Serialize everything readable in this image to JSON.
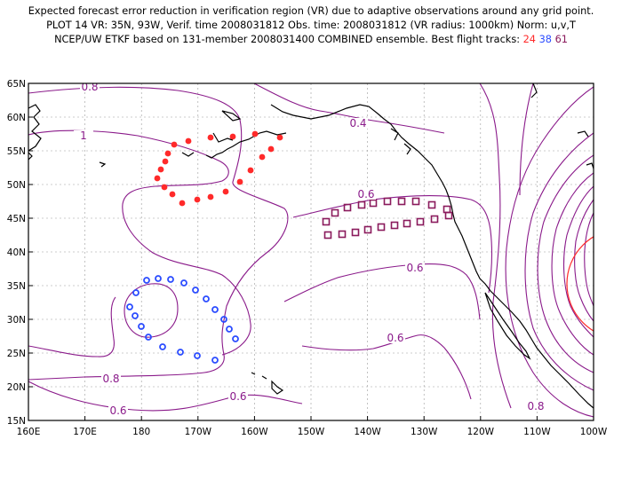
{
  "header": {
    "line1": "Expected forecast error reduction in verification region (VR) due to adaptive observations around any grid point.",
    "line2": "PLOT 14 VR: 35N, 93W, Verif. time 2008031812 Obs. time: 2008031812 (VR radius: 1000km) Norm: u,v,T",
    "line3_prefix": "NCEP/UW ETKF based on 131-member 2008031400 COMBINED ensemble.  Best flight tracks: ",
    "track_24": "24",
    "track_38": "38",
    "track_61": "61"
  },
  "map": {
    "lat_labels": [
      "65N",
      "60N",
      "55N",
      "50N",
      "45N",
      "40N",
      "35N",
      "30N",
      "25N",
      "20N",
      "15N"
    ],
    "lon_labels": [
      "160E",
      "170E",
      "180",
      "170W",
      "160W",
      "150W",
      "140W",
      "130W",
      "120W",
      "110W",
      "100W"
    ],
    "contour_labels": [
      {
        "text": "0.8"
      },
      {
        "text": "1"
      },
      {
        "text": "0.4"
      },
      {
        "text": "0.6"
      },
      {
        "text": "0.6"
      },
      {
        "text": "0.6"
      },
      {
        "text": "0.8"
      },
      {
        "text": "0.6"
      },
      {
        "text": "0.6"
      },
      {
        "text": "0.8"
      }
    ],
    "tracks": [
      {
        "id": "24",
        "color": "#ff2a2a",
        "marker": "filled-circle"
      },
      {
        "id": "38",
        "color": "#2b4cff",
        "marker": "open-circle"
      },
      {
        "id": "61",
        "color": "#8a1a5c",
        "marker": "open-square"
      }
    ],
    "contour_color": "#8a1a8a",
    "vr_circle_color": "#ff2a2a"
  }
}
